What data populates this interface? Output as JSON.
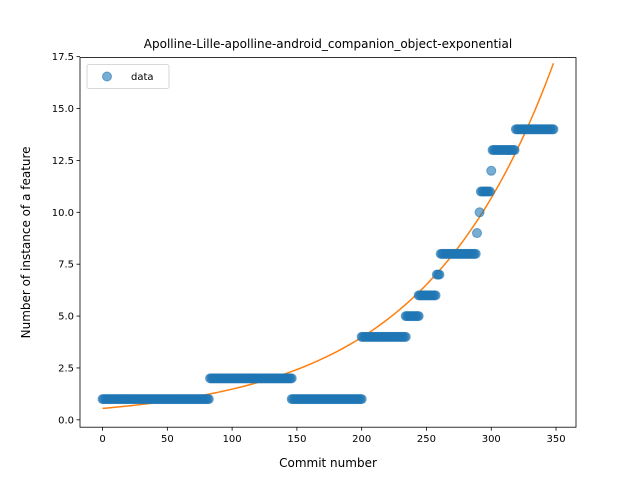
{
  "chart_data": {
    "type": "scatter",
    "title": "Apolline-Lille-apolline-android_companion_object-exponential",
    "xlabel": "Commit number",
    "ylabel": "Number of instance of a feature",
    "xlim": [
      -17.4,
      365.4
    ],
    "ylim": [
      -0.355,
      17.455
    ],
    "xticks": [
      0,
      50,
      100,
      150,
      200,
      250,
      300,
      350
    ],
    "yticks": [
      0.0,
      2.5,
      5.0,
      7.5,
      10.0,
      12.5,
      15.0,
      17.5
    ],
    "xtick_labels": [
      "0",
      "50",
      "100",
      "150",
      "200",
      "250",
      "300",
      "350"
    ],
    "ytick_labels": [
      "0.0",
      "2.5",
      "5.0",
      "7.5",
      "10.0",
      "12.5",
      "15.0",
      "17.5"
    ],
    "legend": {
      "position": "top-left",
      "entries": [
        "data"
      ]
    },
    "grid": false,
    "colors": {
      "data": "#1f77b4",
      "fit": "#ff7f0e"
    },
    "series": [
      {
        "name": "data",
        "kind": "scatter",
        "segments": [
          {
            "x_from": 0,
            "x_to": 82,
            "y": 1
          },
          {
            "x_from": 83,
            "x_to": 146,
            "y": 2
          },
          {
            "x_from": 146,
            "x_to": 200,
            "y": 1
          },
          {
            "x_from": 200,
            "x_to": 234,
            "y": 4
          },
          {
            "x_from": 234,
            "x_to": 244,
            "y": 5
          },
          {
            "x_from": 244,
            "x_to": 257,
            "y": 6
          },
          {
            "x_from": 258,
            "x_to": 260,
            "y": 7
          },
          {
            "x_from": 261,
            "x_to": 288,
            "y": 8
          },
          {
            "x_from": 289,
            "x_to": 289,
            "y": 9
          },
          {
            "x_from": 291,
            "x_to": 291,
            "y": 10
          },
          {
            "x_from": 292,
            "x_to": 299,
            "y": 11
          },
          {
            "x_from": 300,
            "x_to": 300,
            "y": 12
          },
          {
            "x_from": 301,
            "x_to": 318,
            "y": 13
          },
          {
            "x_from": 319,
            "x_to": 348,
            "y": 14
          }
        ]
      },
      {
        "kind": "line",
        "model": "exponential",
        "a": 0.55,
        "b": 0.00989,
        "x_range": [
          0,
          348
        ]
      }
    ]
  }
}
